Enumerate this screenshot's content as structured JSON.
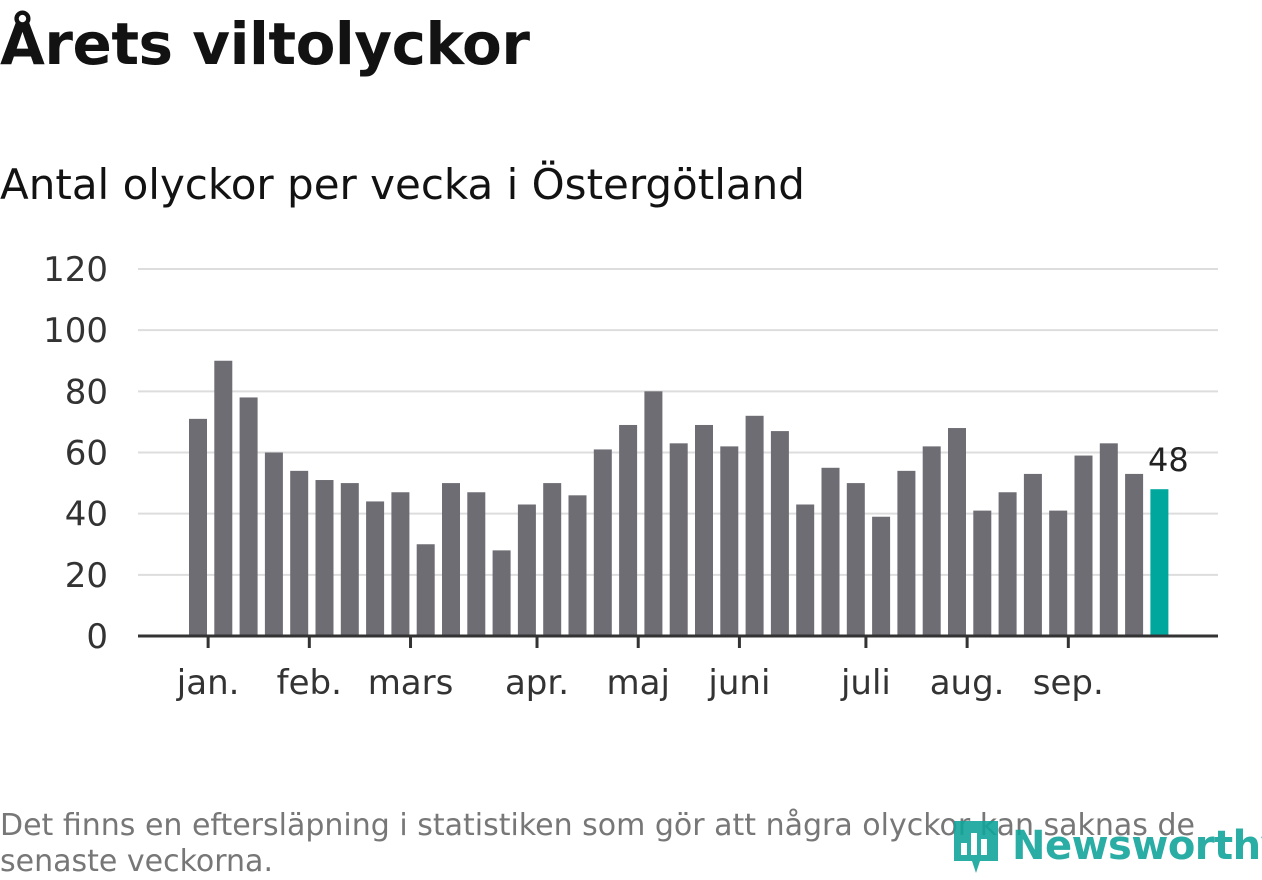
{
  "header": {
    "title": "Årets viltolyckor",
    "subtitle": "Antal olyckor per vecka i Östergötland"
  },
  "footnote": "Det finns en eftersläpning i statistiken som gör att några olyckor kan saknas de senaste veckorna.",
  "logo": {
    "text": "Newsworthy",
    "icon": "bar-chart-icon"
  },
  "colors": {
    "bar": "#6e6d74",
    "highlight": "#00a79d",
    "grid": "#dddddd",
    "axis": "#333333"
  },
  "chart_data": {
    "type": "bar",
    "title": "Årets viltolyckor",
    "subtitle": "Antal olyckor per vecka i Östergötland",
    "xlabel": "",
    "ylabel": "",
    "ylim": [
      0,
      120
    ],
    "yticks": [
      0,
      20,
      40,
      60,
      80,
      100,
      120
    ],
    "grid": true,
    "legend": "none",
    "values": [
      71,
      90,
      78,
      60,
      54,
      51,
      50,
      44,
      47,
      30,
      50,
      47,
      28,
      43,
      50,
      46,
      61,
      69,
      80,
      63,
      69,
      62,
      72,
      67,
      43,
      55,
      50,
      39,
      54,
      62,
      68,
      41,
      47,
      53,
      41,
      59,
      63,
      53,
      48
    ],
    "highlight_last": true,
    "last_value_label": "48",
    "month_ticks": [
      {
        "label": "jan.",
        "bar_index": 0.4
      },
      {
        "label": "feb.",
        "bar_index": 4.4
      },
      {
        "label": "mars",
        "bar_index": 8.4
      },
      {
        "label": "apr.",
        "bar_index": 13.4
      },
      {
        "label": "maj",
        "bar_index": 17.4
      },
      {
        "label": "juni",
        "bar_index": 21.4
      },
      {
        "label": "juli",
        "bar_index": 26.4
      },
      {
        "label": "aug.",
        "bar_index": 30.4
      },
      {
        "label": "sep.",
        "bar_index": 34.4
      }
    ]
  }
}
